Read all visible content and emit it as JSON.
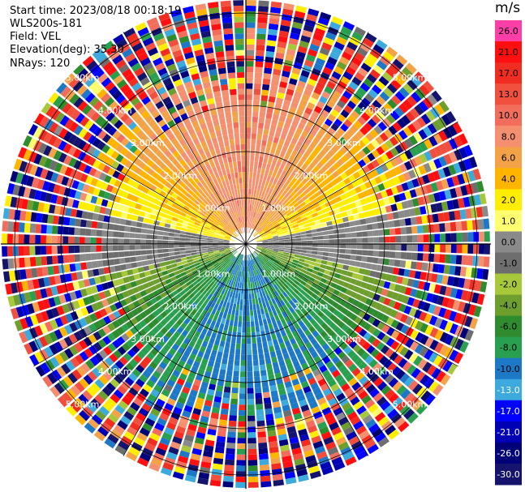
{
  "header": {
    "start_time": "Start time: 2023/08/18 00:18:19",
    "instrument": "WLS200s-181",
    "field": "Field: VEL",
    "elevation": "Elevation(deg): 35.30",
    "nrays": "NRays: 120"
  },
  "chart_data": {
    "type": "heatmap",
    "projection": "polar-ppi",
    "field": "VEL",
    "units": "m/s",
    "n_rays": 120,
    "range_rings_km": [
      1.0,
      2.0,
      3.0,
      4.0,
      5.0
    ],
    "ring_labels": [
      "1.00km",
      "2.00km",
      "3.00km",
      "4.00km",
      "5.00km"
    ],
    "max_range_km": 5.3,
    "spokes_deg": [
      0,
      30,
      60,
      90,
      120,
      150,
      180,
      210,
      240,
      270,
      300,
      330
    ],
    "pattern": {
      "north_sector_ms": "positive velocities (2 to 17 m/s), orange/yellow",
      "south_sector_ms": "negative velocities (-2 to -13 m/s), green/blue",
      "east_west_band_ms": "near zero (-1 to 1 m/s), grey",
      "outer_rings": "noisy, full color range"
    }
  },
  "colorbar": {
    "title": "m/s",
    "tick_labels": [
      "26.0",
      "21.0",
      "17.0",
      "13.0",
      "10.0",
      "8.0",
      "6.0",
      "4.0",
      "2.0",
      "1.0",
      "0.0",
      "-1.0",
      "-2.0",
      "-4.0",
      "-6.0",
      "-8.0",
      "-10.0",
      "-13.0",
      "-17.0",
      "-21.0",
      "-26.0",
      "-30.0"
    ],
    "colors": [
      "#ff3fa8",
      "#ff0f0f",
      "#f02d20",
      "#f0503d",
      "#f26d5b",
      "#f49070",
      "#f4a248",
      "#ffb400",
      "#ffee00",
      "#ffff70",
      "#8a8a8a",
      "#6e6e6e",
      "#a8c83c",
      "#6e9e2e",
      "#2e8b2e",
      "#28a050",
      "#1e78c8",
      "#3caadc",
      "#0000ff",
      "#0000b4",
      "#000078",
      "#14146e"
    ]
  }
}
